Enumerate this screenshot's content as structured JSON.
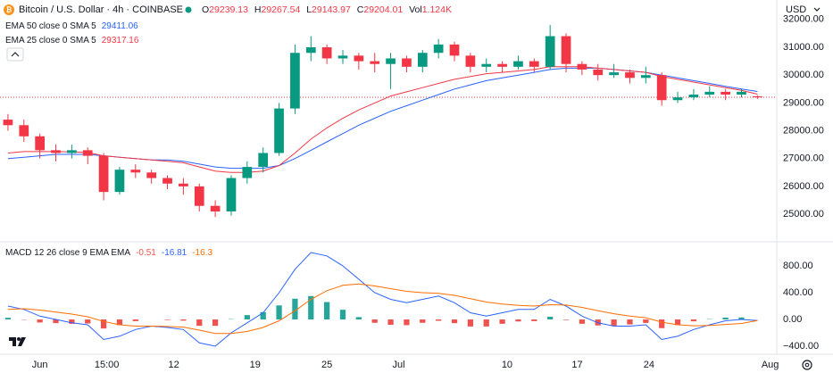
{
  "header": {
    "symbol": "Bitcoin / U.S. Dollar · 4h · COINBASE",
    "ohlc_labels": [
      "O",
      "H",
      "L",
      "C"
    ],
    "vol_label": "Vol",
    "vol_value": "1.124K",
    "currency": "USD"
  },
  "chart_data": [
    {
      "type": "candlestick",
      "x": [
        0,
        1,
        2,
        3,
        4,
        5,
        6,
        7,
        8,
        9,
        10,
        11,
        12,
        13,
        14,
        15,
        16,
        17,
        18,
        19,
        20,
        21,
        22,
        23,
        24,
        25,
        26,
        27,
        28,
        29,
        30,
        31,
        32,
        33,
        34,
        35,
        36,
        37,
        38,
        39,
        40,
        41,
        42,
        43,
        44,
        45,
        46,
        47
      ],
      "xlim": [
        -0.5,
        48.1
      ],
      "ylim": [
        24040,
        32700
      ],
      "yticks": [
        {
          "value": 25000,
          "label": "25000.00"
        },
        {
          "value": 26000,
          "label": "26000.00"
        },
        {
          "value": 27000,
          "label": "27000.00"
        },
        {
          "value": 28000,
          "label": "28000.00"
        },
        {
          "value": 29000,
          "label": "29000.00"
        },
        {
          "value": 30000,
          "label": "30000.00"
        },
        {
          "value": 31000,
          "label": "31000.00"
        },
        {
          "value": 32000,
          "label": "32000.00"
        }
      ],
      "up_color": "#089981",
      "down_color": "#f23645",
      "open": [
        28400,
        28200,
        27800,
        27300,
        27200,
        27300,
        27100,
        25800,
        26600,
        26500,
        26300,
        26100,
        26000,
        25300,
        25100,
        26300,
        26700,
        27200,
        28800,
        30800,
        31000,
        30600,
        30700,
        30500,
        30400,
        30600,
        30300,
        30800,
        31100,
        30700,
        30300,
        30400,
        30300,
        30500,
        30300,
        31400,
        30400,
        30200,
        30000,
        30100,
        29900,
        30000,
        29100,
        29200,
        29300,
        29400,
        29300,
        29239.13
      ],
      "high": [
        28600,
        28400,
        27900,
        27500,
        27500,
        27400,
        27200,
        26700,
        26800,
        26600,
        26400,
        26300,
        26100,
        25500,
        26400,
        26900,
        27400,
        29000,
        31100,
        31400,
        31100,
        30900,
        30800,
        30800,
        30800,
        30700,
        30900,
        31300,
        31200,
        30800,
        30600,
        30500,
        30700,
        30600,
        31800,
        31500,
        30500,
        30400,
        30400,
        30200,
        30300,
        30100,
        29400,
        29500,
        29600,
        29500,
        29500,
        29267.54
      ],
      "low": [
        28000,
        27600,
        27000,
        26900,
        27000,
        26800,
        25500,
        25700,
        26300,
        26100,
        25900,
        25700,
        25100,
        24900,
        24950,
        26100,
        26500,
        27100,
        28600,
        30500,
        30400,
        30400,
        30200,
        30100,
        29500,
        30100,
        30100,
        30600,
        30500,
        30100,
        30100,
        30100,
        30200,
        30100,
        30200,
        30100,
        30000,
        29800,
        29900,
        29700,
        29700,
        28900,
        29000,
        29100,
        29200,
        29100,
        29200,
        29143.97
      ],
      "close": [
        28200,
        27800,
        27300,
        27200,
        27300,
        27100,
        25800,
        26600,
        26500,
        26300,
        26100,
        26000,
        25300,
        25100,
        26300,
        26700,
        27200,
        28800,
        30800,
        31000,
        30600,
        30700,
        30500,
        30400,
        30600,
        30300,
        30800,
        31100,
        30700,
        30300,
        30400,
        30300,
        30500,
        30300,
        31400,
        30400,
        30200,
        30000,
        30100,
        29900,
        30000,
        29100,
        29200,
        29300,
        29400,
        29300,
        29400,
        29204.01
      ],
      "series": [
        {
          "name": "EMA 50 close 0 SMA 5",
          "color": "#2962ff",
          "values": [
            27000,
            27050,
            27100,
            27150,
            27150,
            27150,
            27100,
            27050,
            27000,
            26950,
            26950,
            26900,
            26800,
            26700,
            26650,
            26650,
            26650,
            26750,
            27000,
            27300,
            27600,
            27900,
            28200,
            28450,
            28700,
            28900,
            29100,
            29300,
            29500,
            29650,
            29800,
            29900,
            30000,
            30100,
            30200,
            30250,
            30250,
            30250,
            30200,
            30150,
            30100,
            30000,
            29900,
            29800,
            29700,
            29600,
            29500,
            29411.06
          ]
        },
        {
          "name": "EMA 25 close 0 SMA 5",
          "color": "#f23645",
          "values": [
            27200,
            27250,
            27250,
            27250,
            27240,
            27220,
            27100,
            27050,
            27000,
            26950,
            26900,
            26850,
            26700,
            26550,
            26500,
            26500,
            26550,
            26750,
            27200,
            27700,
            28100,
            28450,
            28750,
            29000,
            29250,
            29400,
            29550,
            29700,
            29850,
            29950,
            30050,
            30100,
            30150,
            30200,
            30300,
            30300,
            30300,
            30250,
            30200,
            30150,
            30100,
            29950,
            29850,
            29750,
            29650,
            29550,
            29450,
            29317.16
          ]
        }
      ]
    },
    {
      "type": "macd",
      "name": "MACD 12 26 close 9 EMA EMA",
      "x": [
        0,
        1,
        2,
        3,
        4,
        5,
        6,
        7,
        8,
        9,
        10,
        11,
        12,
        13,
        14,
        15,
        16,
        17,
        18,
        19,
        20,
        21,
        22,
        23,
        24,
        25,
        26,
        27,
        28,
        29,
        30,
        31,
        32,
        33,
        34,
        35,
        36,
        37,
        38,
        39,
        40,
        41,
        42,
        43,
        44,
        45,
        46,
        47
      ],
      "xlim": [
        -0.5,
        48.1
      ],
      "xticks": [
        {
          "value": 2,
          "label": "Jun"
        },
        {
          "value": 6.2,
          "label": "15:00"
        },
        {
          "value": 10.4,
          "label": "12"
        },
        {
          "value": 15.5,
          "label": "19"
        },
        {
          "value": 20,
          "label": "25"
        },
        {
          "value": 24.5,
          "label": "Jul"
        },
        {
          "value": 31.3,
          "label": "10"
        },
        {
          "value": 35.7,
          "label": "17"
        },
        {
          "value": 40.2,
          "label": "24"
        },
        {
          "value": 47.8,
          "label": "Aug"
        }
      ],
      "ylim": [
        -493,
        1147
      ],
      "yticks": [
        {
          "value": 800,
          "label": "800.00"
        },
        {
          "value": 400,
          "label": "400.00"
        },
        {
          "value": 0,
          "label": "0.00"
        },
        {
          "value": -400,
          "label": "−400.00"
        }
      ],
      "histogram": {
        "up_color": "#26a69a",
        "down_color": "#ef5350",
        "values": [
          25,
          -5,
          -45,
          -55,
          -65,
          -60,
          -135,
          -85,
          -25,
          0,
          -8,
          -18,
          -95,
          -95,
          5,
          65,
          110,
          210,
          310,
          350,
          260,
          145,
          35,
          -50,
          -80,
          -85,
          -50,
          -20,
          -55,
          -105,
          -105,
          -65,
          -30,
          -25,
          40,
          -8,
          -65,
          -90,
          -92,
          -75,
          -52,
          -130,
          -85,
          -28,
          5,
          28,
          30,
          -0.51
        ]
      },
      "series": [
        {
          "color": "#2962ff",
          "values": [
            200,
            150,
            50,
            0,
            -50,
            -80,
            -300,
            -250,
            -150,
            -100,
            -120,
            -150,
            -350,
            -400,
            -200,
            -50,
            100,
            400,
            750,
            1000,
            950,
            800,
            600,
            400,
            300,
            250,
            300,
            350,
            250,
            100,
            50,
            100,
            150,
            150,
            300,
            200,
            50,
            -50,
            -100,
            -100,
            -80,
            -300,
            -250,
            -150,
            -80,
            -20,
            0,
            -16.81
          ]
        },
        {
          "color": "#ff6d00",
          "values": [
            150,
            160,
            140,
            110,
            80,
            40,
            -30,
            -80,
            -100,
            -100,
            -105,
            -115,
            -160,
            -210,
            -210,
            -180,
            -120,
            -20,
            130,
            300,
            430,
            510,
            530,
            500,
            460,
            420,
            400,
            390,
            360,
            310,
            260,
            230,
            210,
            200,
            220,
            215,
            180,
            130,
            85,
            50,
            25,
            -40,
            -80,
            -95,
            -90,
            -75,
            -60,
            -16.3
          ]
        }
      ]
    }
  ]
}
